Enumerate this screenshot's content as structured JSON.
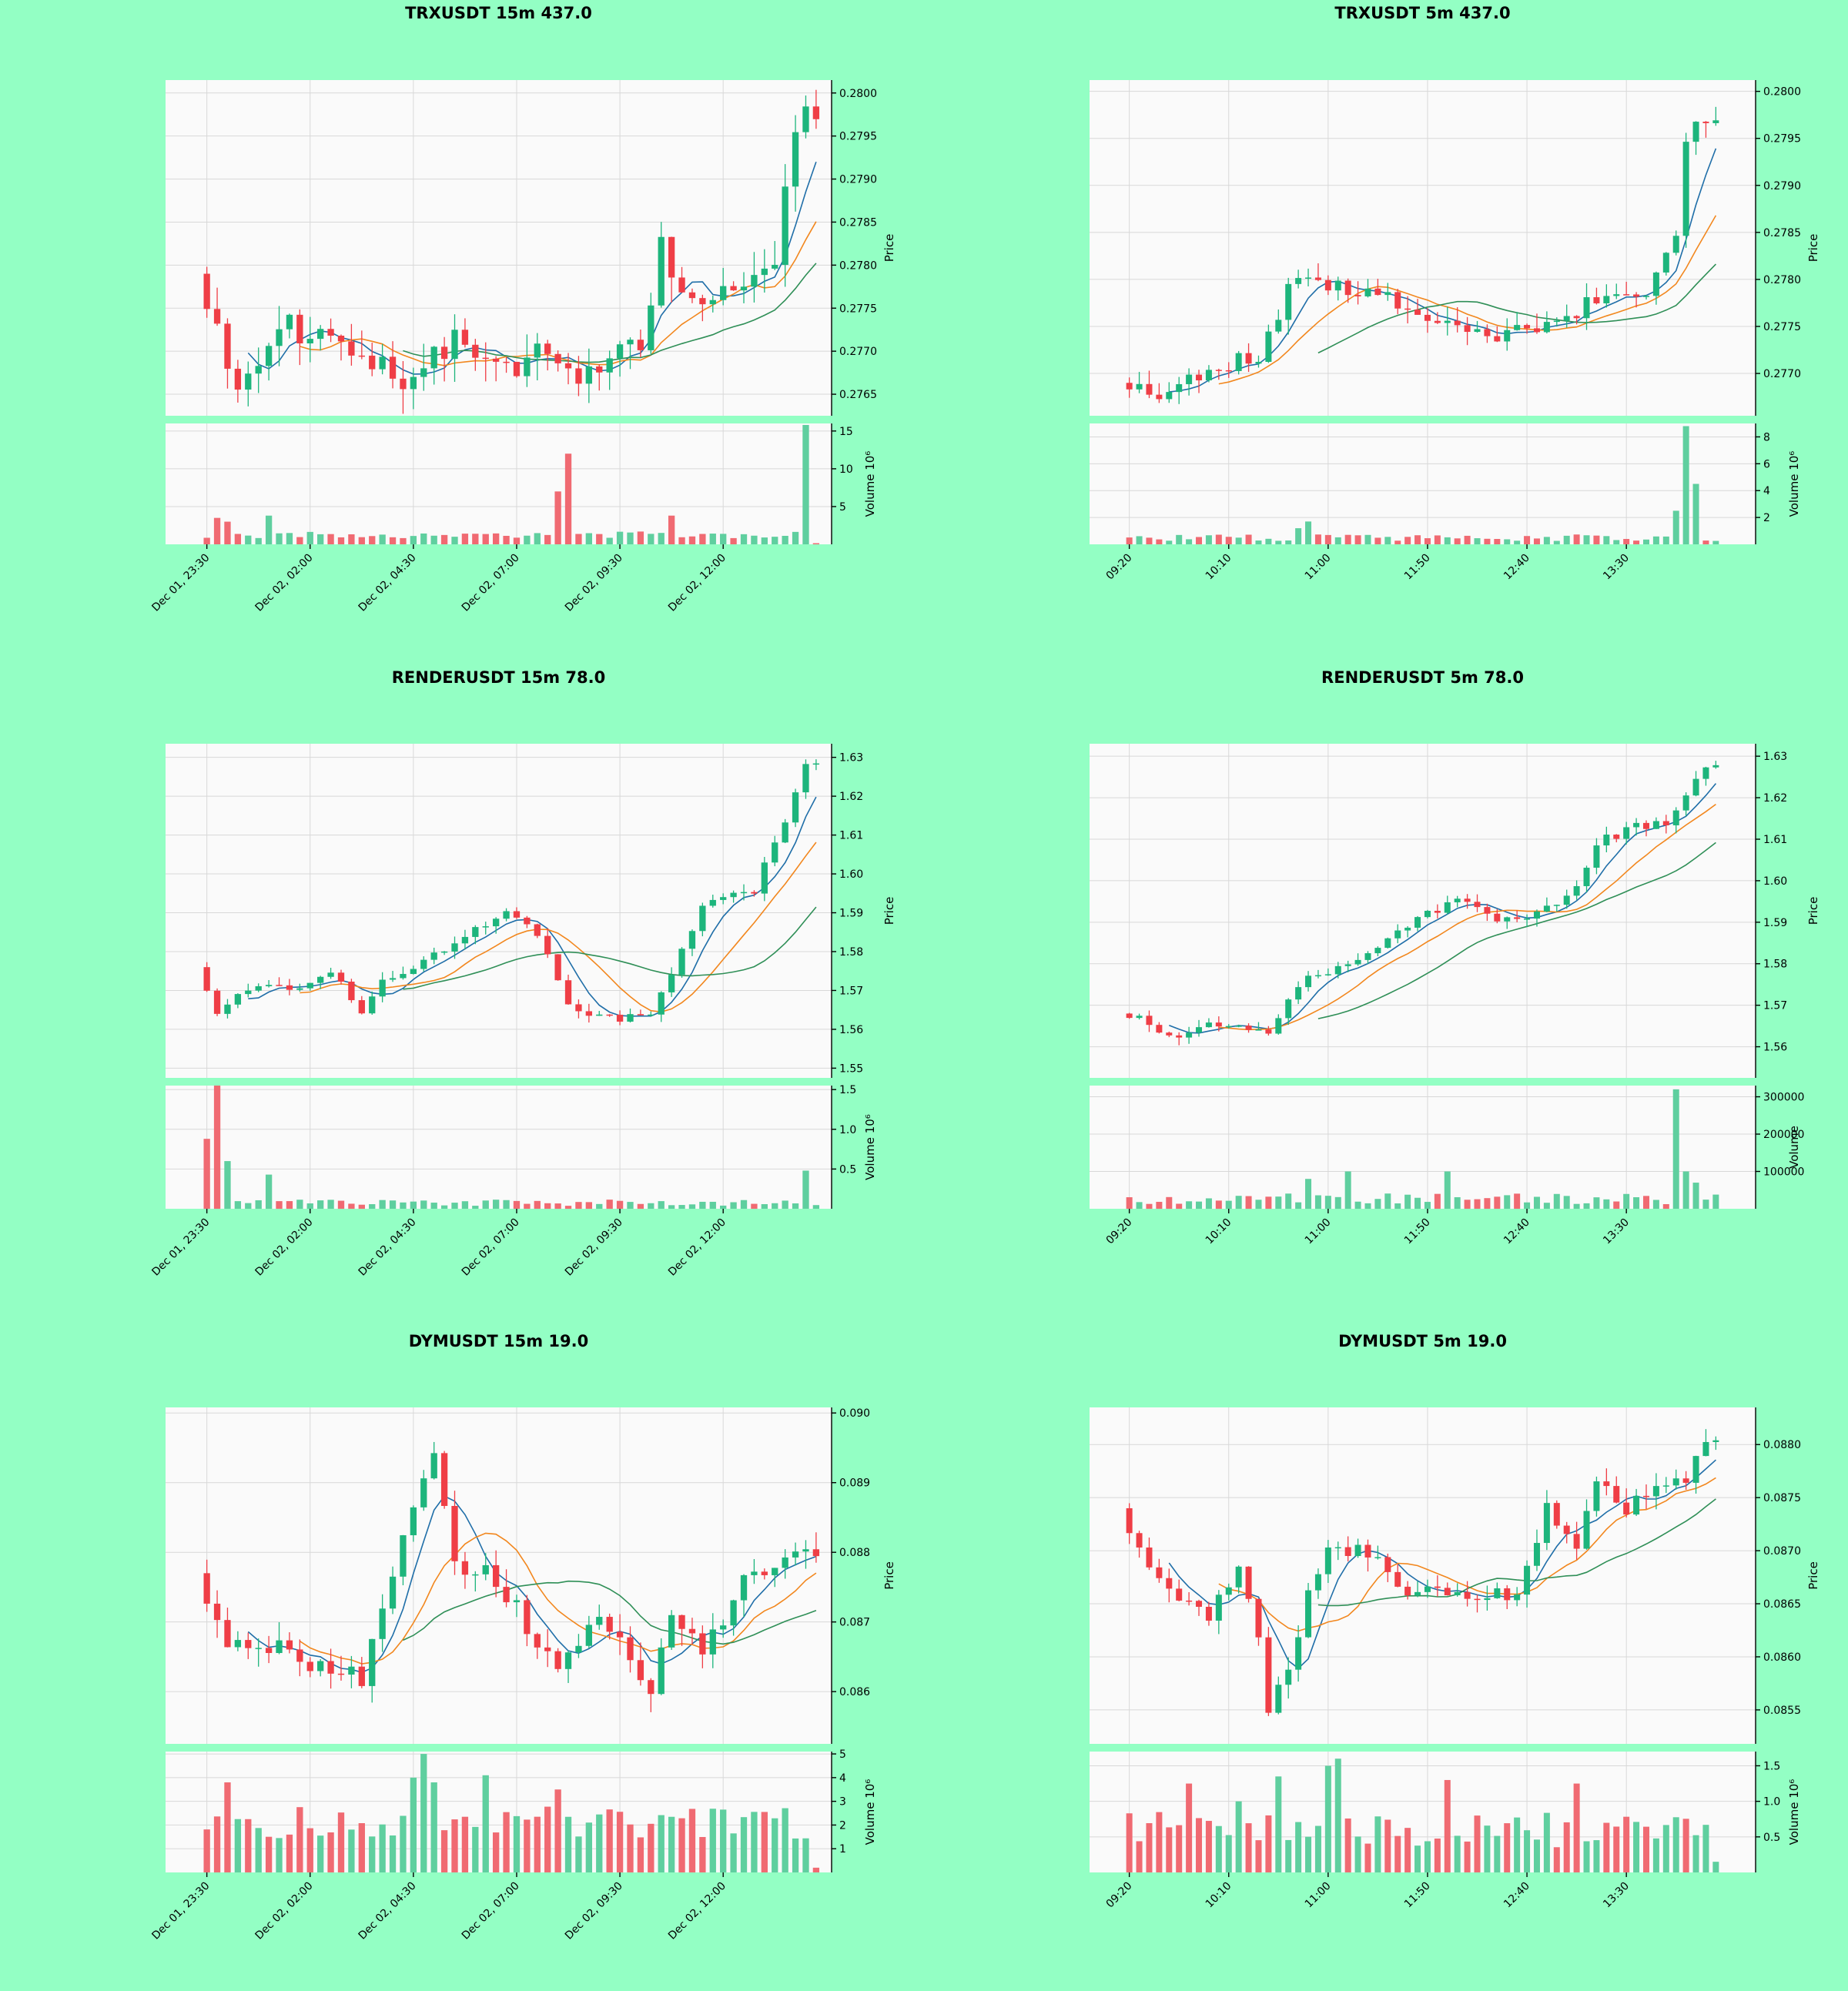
{
  "colors": {
    "background": "#93ffc4",
    "plot_background": "#fafafa",
    "grid": "#d8d8d8",
    "up": "#1db57c",
    "down": "#ef3e46",
    "volume_up": "#5fcf9f",
    "volume_down": "#f06a72",
    "sma_fast": "#1f6ea8",
    "sma_mid": "#f2871e",
    "sma_slow": "#2f8f57"
  },
  "chart_data": [
    {
      "type": "candlestick",
      "title": "TRXUSDT 15m 437.0",
      "ylabel": "Price",
      "volume_label": "Volume  10⁶",
      "x_ticks": [
        {
          "label": "Dec 01, 23:30",
          "index": 0
        },
        {
          "label": "Dec 02, 02:00",
          "index": 10
        },
        {
          "label": "Dec 02, 04:30",
          "index": 20
        },
        {
          "label": "Dec 02, 07:00",
          "index": 30
        },
        {
          "label": "Dec 02, 09:30",
          "index": 40
        },
        {
          "label": "Dec 02, 12:00",
          "index": 50
        }
      ],
      "x_range": [
        -4,
        60.5
      ],
      "price_range": [
        0.27625,
        0.28015
      ],
      "price_ticks": [
        0.2765,
        0.277,
        0.2775,
        0.278,
        0.2785,
        0.279,
        0.2795,
        0.28
      ],
      "price_decimals": 4,
      "volume_range": [
        0,
        16
      ],
      "volume_ticks": [
        5,
        10,
        15
      ],
      "volume_scale": 1000000,
      "volume_tick_decimals": 0,
      "trend": {
        "start": 0.2779,
        "pts": [
          [
            0,
            0.2779
          ],
          [
            4,
            0.2766
          ],
          [
            8,
            0.2773
          ],
          [
            15,
            0.2771
          ],
          [
            20,
            0.2767
          ],
          [
            25,
            0.2771
          ],
          [
            30,
            0.2768
          ],
          [
            34,
            0.277
          ],
          [
            37,
            0.2767
          ],
          [
            43,
            0.2771
          ],
          [
            45,
            0.2782
          ],
          [
            48,
            0.2776
          ],
          [
            52,
            0.2776
          ],
          [
            56,
            0.278
          ],
          [
            58,
            0.2797
          ],
          [
            59,
            0.2797
          ]
        ],
        "amp": 0.00065,
        "vol_base": 0.8,
        "vol_amp": 0.9,
        "vol_spikes": {
          "1": 3.5,
          "2": 3.0,
          "6": 3.8,
          "34": 7.0,
          "35": 12.0,
          "45": 3.8,
          "58": 15.8,
          "59": 0.15
        },
        "seed": 11
      }
    },
    {
      "type": "candlestick",
      "title": "TRXUSDT 5m 437.0",
      "ylabel": "Price",
      "volume_label": "Volume  10⁶",
      "x_ticks": [
        {
          "label": "09:20",
          "index": 0
        },
        {
          "label": "10:10",
          "index": 10
        },
        {
          "label": "11:00",
          "index": 20
        },
        {
          "label": "11:50",
          "index": 30
        },
        {
          "label": "12:40",
          "index": 40
        },
        {
          "label": "13:30",
          "index": 50
        }
      ],
      "x_range": [
        -4,
        63
      ],
      "price_range": [
        0.27655,
        0.28012
      ],
      "price_ticks": [
        0.277,
        0.2775,
        0.278,
        0.2785,
        0.279,
        0.2795,
        0.28
      ],
      "price_decimals": 4,
      "volume_range": [
        0,
        9
      ],
      "volume_ticks": [
        2,
        4,
        6,
        8
      ],
      "volume_scale": 1000000,
      "volume_tick_decimals": 0,
      "trend": {
        "start": 0.2769,
        "pts": [
          [
            0,
            0.2769
          ],
          [
            4,
            0.2768
          ],
          [
            8,
            0.277
          ],
          [
            14,
            0.2772
          ],
          [
            18,
            0.2781
          ],
          [
            21,
            0.2779
          ],
          [
            26,
            0.2779
          ],
          [
            30,
            0.2776
          ],
          [
            37,
            0.2774
          ],
          [
            44,
            0.2775
          ],
          [
            48,
            0.2778
          ],
          [
            53,
            0.2779
          ],
          [
            56,
            0.2785
          ],
          [
            57,
            0.2795
          ],
          [
            58,
            0.2797
          ],
          [
            59,
            0.2797
          ]
        ],
        "amp": 0.00035,
        "vol_base": 0.25,
        "vol_amp": 0.5,
        "vol_spikes": {
          "17": 1.2,
          "18": 1.7,
          "55": 2.5,
          "56": 8.8,
          "57": 4.5
        },
        "seed": 23
      }
    },
    {
      "type": "candlestick",
      "title": "RENDERUSDT 15m 78.0",
      "ylabel": "Price",
      "volume_label": "Volume  10⁶",
      "x_ticks": [
        {
          "label": "Dec 01, 23:30",
          "index": 0
        },
        {
          "label": "Dec 02, 02:00",
          "index": 10
        },
        {
          "label": "Dec 02, 04:30",
          "index": 20
        },
        {
          "label": "Dec 02, 07:00",
          "index": 30
        },
        {
          "label": "Dec 02, 09:30",
          "index": 40
        },
        {
          "label": "Dec 02, 12:00",
          "index": 50
        }
      ],
      "x_range": [
        -4,
        60.5
      ],
      "price_range": [
        1.5475,
        1.6335
      ],
      "price_ticks": [
        1.55,
        1.56,
        1.57,
        1.58,
        1.59,
        1.6,
        1.61,
        1.62,
        1.63
      ],
      "price_decimals": 2,
      "volume_range": [
        0,
        1.55
      ],
      "volume_ticks": [
        0.5,
        1.0,
        1.5
      ],
      "volume_scale": 1000000,
      "volume_tick_decimals": 1,
      "trend": {
        "start": 1.576,
        "pts": [
          [
            0,
            1.576
          ],
          [
            2,
            1.565
          ],
          [
            6,
            1.572
          ],
          [
            10,
            1.571
          ],
          [
            13,
            1.575
          ],
          [
            16,
            1.565
          ],
          [
            18,
            1.572
          ],
          [
            22,
            1.578
          ],
          [
            26,
            1.584
          ],
          [
            30,
            1.59
          ],
          [
            33,
            1.585
          ],
          [
            36,
            1.566
          ],
          [
            40,
            1.563
          ],
          [
            44,
            1.563
          ],
          [
            49,
            1.592
          ],
          [
            54,
            1.596
          ],
          [
            57,
            1.614
          ],
          [
            59,
            1.629
          ]
        ],
        "amp": 0.0045,
        "vol_base": 0.035,
        "vol_amp": 0.08,
        "vol_spikes": {
          "0": 0.88,
          "1": 1.55,
          "2": 0.6,
          "6": 0.43,
          "58": 0.48
        },
        "seed": 37
      }
    },
    {
      "type": "candlestick",
      "title": "RENDERUSDT 5m 78.0",
      "ylabel": "Price",
      "volume_label": "Volume",
      "x_ticks": [
        {
          "label": "09:20",
          "index": 0
        },
        {
          "label": "10:10",
          "index": 10
        },
        {
          "label": "11:00",
          "index": 20
        },
        {
          "label": "11:50",
          "index": 30
        },
        {
          "label": "12:40",
          "index": 40
        },
        {
          "label": "13:30",
          "index": 50
        }
      ],
      "x_range": [
        -4,
        63
      ],
      "price_range": [
        1.5525,
        1.633
      ],
      "price_ticks": [
        1.56,
        1.57,
        1.58,
        1.59,
        1.6,
        1.61,
        1.62,
        1.63
      ],
      "price_decimals": 2,
      "volume_range": [
        0,
        330000
      ],
      "volume_ticks": [
        100000,
        200000,
        300000
      ],
      "volume_scale": 1,
      "volume_tick_decimals": 0,
      "trend": {
        "start": 1.568,
        "pts": [
          [
            0,
            1.568
          ],
          [
            2,
            1.567
          ],
          [
            5,
            1.562
          ],
          [
            9,
            1.566
          ],
          [
            12,
            1.566
          ],
          [
            15,
            1.563
          ],
          [
            18,
            1.575
          ],
          [
            22,
            1.579
          ],
          [
            26,
            1.584
          ],
          [
            31,
            1.592
          ],
          [
            35,
            1.596
          ],
          [
            38,
            1.59
          ],
          [
            43,
            1.593
          ],
          [
            46,
            1.599
          ],
          [
            48,
            1.609
          ],
          [
            52,
            1.613
          ],
          [
            55,
            1.614
          ],
          [
            57,
            1.621
          ],
          [
            59,
            1.627
          ]
        ],
        "amp": 0.0045,
        "vol_base": 12000,
        "vol_amp": 30000,
        "vol_spikes": {
          "18": 80000,
          "22": 100000,
          "32": 100000,
          "55": 320000,
          "56": 100000,
          "57": 70000
        },
        "seed": 53
      }
    },
    {
      "type": "candlestick",
      "title": "DYMUSDT 15m 19.0",
      "ylabel": "Price",
      "volume_label": "Volume  10⁶",
      "x_ticks": [
        {
          "label": "Dec 01, 23:30",
          "index": 0
        },
        {
          "label": "Dec 02, 02:00",
          "index": 10
        },
        {
          "label": "Dec 02, 04:30",
          "index": 20
        },
        {
          "label": "Dec 02, 07:00",
          "index": 30
        },
        {
          "label": "Dec 02, 09:30",
          "index": 40
        },
        {
          "label": "Dec 02, 12:00",
          "index": 50
        }
      ],
      "x_range": [
        -4,
        60.5
      ],
      "price_range": [
        0.08525,
        0.09008
      ],
      "price_ticks": [
        0.086,
        0.087,
        0.088,
        0.089,
        0.09
      ],
      "price_decimals": 3,
      "volume_range": [
        0,
        5.1
      ],
      "volume_ticks": [
        1,
        2,
        3,
        4,
        5
      ],
      "volume_scale": 1000000,
      "volume_tick_decimals": 0,
      "trend": {
        "start": 0.0877,
        "pts": [
          [
            0,
            0.0877
          ],
          [
            3,
            0.0866
          ],
          [
            8,
            0.0866
          ],
          [
            12,
            0.0863
          ],
          [
            16,
            0.0862
          ],
          [
            18,
            0.0873
          ],
          [
            21,
            0.0885
          ],
          [
            23,
            0.0895
          ],
          [
            25,
            0.0878
          ],
          [
            28,
            0.0877
          ],
          [
            31,
            0.0872
          ],
          [
            35,
            0.0863
          ],
          [
            39,
            0.0871
          ],
          [
            42,
            0.0865
          ],
          [
            44,
            0.0859
          ],
          [
            46,
            0.0871
          ],
          [
            49,
            0.0866
          ],
          [
            53,
            0.0876
          ],
          [
            56,
            0.0878
          ],
          [
            59,
            0.088
          ]
        ],
        "amp": 0.0006,
        "vol_base": 1.4,
        "vol_amp": 1.4,
        "vol_spikes": {
          "2": 3.8,
          "20": 4.0,
          "21": 5.0,
          "22": 3.8,
          "27": 4.1,
          "34": 3.5,
          "59": 0.2
        },
        "seed": 71
      }
    },
    {
      "type": "candlestick",
      "title": "DYMUSDT 5m 19.0",
      "ylabel": "Price",
      "volume_label": "Volume  10⁶",
      "x_ticks": [
        {
          "label": "09:20",
          "index": 0
        },
        {
          "label": "10:10",
          "index": 10
        },
        {
          "label": "11:00",
          "index": 20
        },
        {
          "label": "11:50",
          "index": 30
        },
        {
          "label": "12:40",
          "index": 40
        },
        {
          "label": "13:30",
          "index": 50
        }
      ],
      "x_range": [
        -4,
        63
      ],
      "price_range": [
        0.08518,
        0.08835
      ],
      "price_ticks": [
        0.0855,
        0.086,
        0.0865,
        0.087,
        0.0875,
        0.088
      ],
      "price_decimals": 4,
      "volume_range": [
        0,
        1.7
      ],
      "volume_ticks": [
        0.5,
        1.0,
        1.5
      ],
      "volume_scale": 1000000,
      "volume_tick_decimals": 1,
      "trend": {
        "start": 0.0874,
        "pts": [
          [
            0,
            0.0874
          ],
          [
            3,
            0.0868
          ],
          [
            6,
            0.0866
          ],
          [
            9,
            0.0864
          ],
          [
            12,
            0.0868
          ],
          [
            14,
            0.0862
          ],
          [
            15,
            0.0855
          ],
          [
            17,
            0.0859
          ],
          [
            19,
            0.0866
          ],
          [
            21,
            0.087
          ],
          [
            25,
            0.087
          ],
          [
            28,
            0.0866
          ],
          [
            32,
            0.0866
          ],
          [
            36,
            0.0866
          ],
          [
            40,
            0.0866
          ],
          [
            43,
            0.0874
          ],
          [
            46,
            0.087
          ],
          [
            48,
            0.0877
          ],
          [
            51,
            0.0874
          ],
          [
            54,
            0.0876
          ],
          [
            57,
            0.0877
          ],
          [
            59,
            0.088
          ]
        ],
        "amp": 0.0003,
        "vol_base": 0.35,
        "vol_amp": 0.5,
        "vol_spikes": {
          "6": 1.25,
          "11": 1.0,
          "15": 1.35,
          "20": 1.5,
          "21": 1.6,
          "32": 1.3,
          "45": 1.25,
          "59": 0.15
        },
        "seed": 89
      }
    }
  ]
}
